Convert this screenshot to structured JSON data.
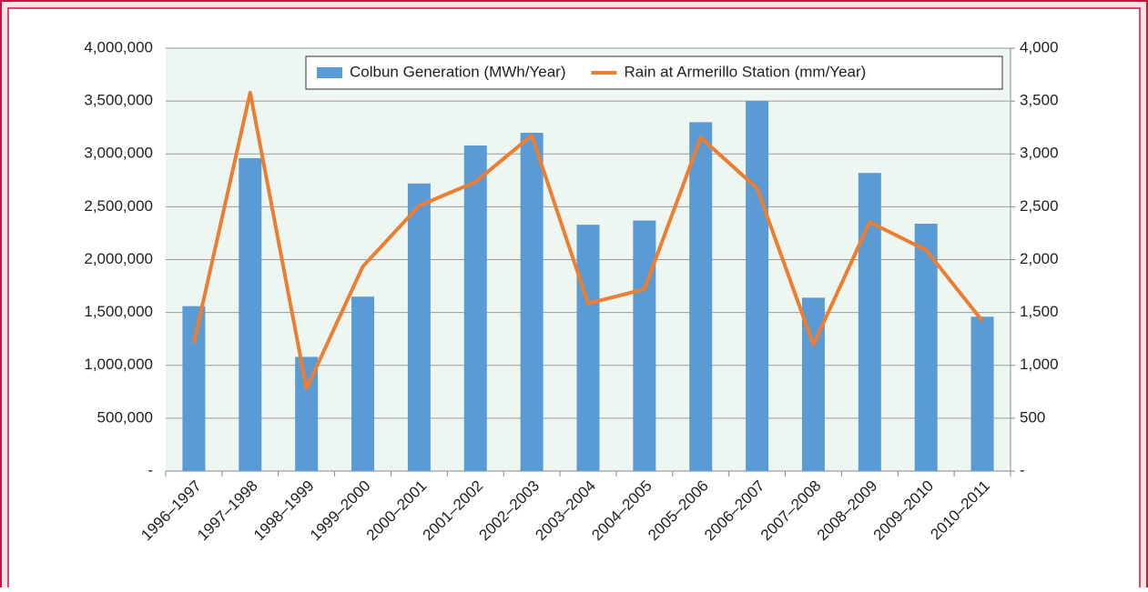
{
  "chart_data": {
    "type": "bar",
    "categories": [
      "1996–1997",
      "1997–1998",
      "1998–1999",
      "1999–2000",
      "2000–2001",
      "2001–2002",
      "2002–2003",
      "2003–2004",
      "2004–2005",
      "2005–2006",
      "2006–2007",
      "2007–2008",
      "2008–2009",
      "2009–2010",
      "2010–2011"
    ],
    "series": [
      {
        "name": "Colbun Generation (MWh/Year)",
        "type": "bar",
        "color": "#5b9bd5",
        "values": [
          1560000,
          2960000,
          1080000,
          1650000,
          2720000,
          3080000,
          3200000,
          2330000,
          2370000,
          3300000,
          3500000,
          1640000,
          2820000,
          2340000,
          1460000
        ]
      },
      {
        "name": "Rain at Armerillo Station (mm/Year)",
        "type": "line",
        "axis": "y2",
        "color": "#ed7d31",
        "values": [
          1210,
          3580,
          780,
          1935,
          2510,
          2735,
          3175,
          1585,
          1720,
          3155,
          2675,
          1195,
          2355,
          2090,
          1420
        ]
      }
    ],
    "ylim": [
      0,
      4000000
    ],
    "yticks": [
      {
        "value": 0,
        "label": "-"
      },
      {
        "value": 500000,
        "label": "500,000"
      },
      {
        "value": 1000000,
        "label": "1,000,000"
      },
      {
        "value": 1500000,
        "label": "1,500,000"
      },
      {
        "value": 2000000,
        "label": "2,000,000"
      },
      {
        "value": 2500000,
        "label": "2,500,000"
      },
      {
        "value": 3000000,
        "label": "3,000,000"
      },
      {
        "value": 3500000,
        "label": "3,500,000"
      },
      {
        "value": 4000000,
        "label": "4,000,000"
      }
    ],
    "y2lim": [
      0,
      4000
    ],
    "y2ticks": [
      {
        "value": 0,
        "label": "-"
      },
      500,
      {
        "value": 1000,
        "label": "1,000"
      },
      {
        "value": 1500,
        "label": "1,500"
      },
      {
        "value": 2000,
        "label": "2,000"
      },
      {
        "value": 2500,
        "label": "2,500"
      },
      {
        "value": 3000,
        "label": "3,000"
      },
      {
        "value": 3500,
        "label": "3,500"
      },
      {
        "value": 4000,
        "label": "4,000"
      }
    ],
    "grid": true,
    "legend": "top"
  }
}
